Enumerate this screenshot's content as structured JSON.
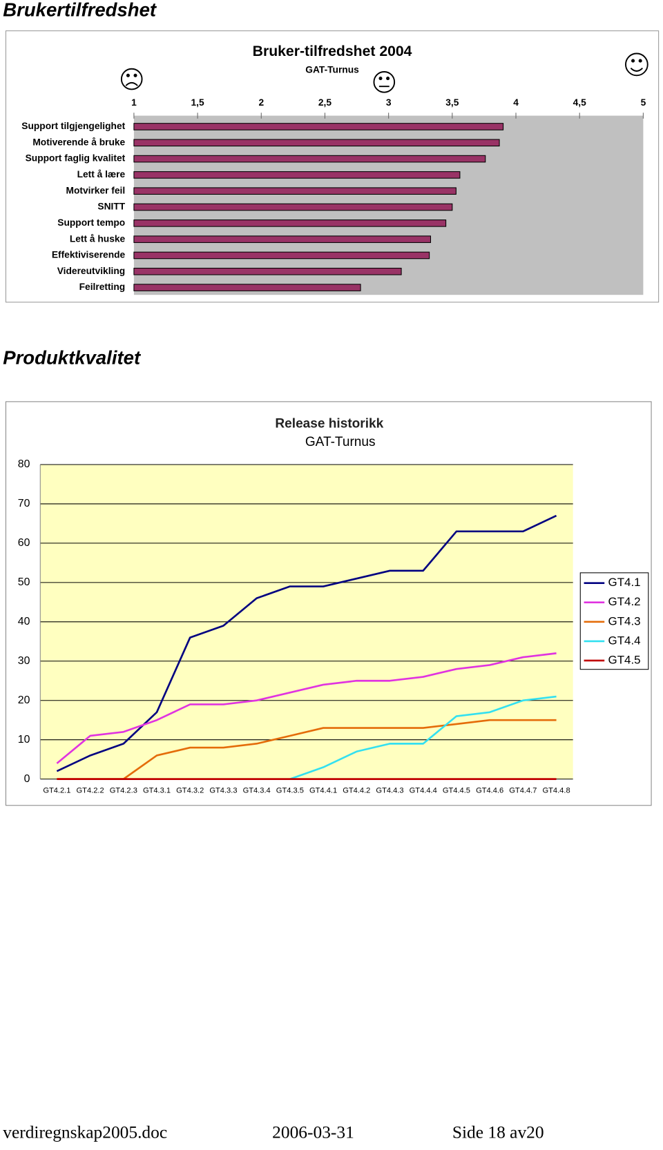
{
  "headings": [
    "Brukertilfredshet",
    "Produktkvalitet"
  ],
  "chart_data": [
    {
      "type": "hbar",
      "title": "Bruker-tilfredshet 2004",
      "subtitle": "GAT-Turnus",
      "categories": [
        "Support tilgjengelighet",
        "Motiverende å bruke",
        "Support faglig kvalitet",
        "Lett å lære",
        "Motvirker feil",
        "SNITT",
        "Support tempo",
        "Lett å huske",
        "Effektiviserende",
        "Videreutvikling",
        "Feilretting"
      ],
      "values": [
        3.9,
        3.87,
        3.76,
        3.56,
        3.53,
        3.5,
        3.45,
        3.33,
        3.32,
        3.1,
        2.78
      ],
      "color": "#993366",
      "xlim": [
        1,
        5
      ],
      "xticks": [
        1,
        {
          "value": 1.5,
          "label": "1,5"
        },
        2,
        {
          "value": 2.5,
          "label": "2,5"
        },
        3,
        {
          "value": 3.5,
          "label": "3,5"
        },
        4,
        {
          "value": 4.5,
          "label": "4,5"
        },
        5
      ]
    },
    {
      "type": "line",
      "title": "Release historikk",
      "subtitle": "GAT-Turnus",
      "categories": [
        "GT4.2.1",
        "GT4.2.2",
        "GT4.2.3",
        "GT4.3.1",
        "GT4.3.2",
        "GT4.3.3",
        "GT4.3.4",
        "GT4.3.5",
        "GT4.4.1",
        "GT4.4.2",
        "GT4.4.3",
        "GT4.4.4",
        "GT4.4.5",
        "GT4.4.6",
        "GT4.4.7",
        "GT4.4.8"
      ],
      "series": [
        {
          "name": "GT4.1",
          "color": "#000080",
          "values": [
            2,
            6,
            9,
            17,
            36,
            39,
            46,
            49,
            49,
            51,
            53,
            53,
            63,
            63,
            63,
            67
          ]
        },
        {
          "name": "GT4.2",
          "color": "#e033e0",
          "values": [
            4,
            11,
            12,
            15,
            19,
            19,
            20,
            22,
            24,
            25,
            25,
            26,
            28,
            29,
            31,
            32
          ]
        },
        {
          "name": "GT4.3",
          "color": "#e46c0a",
          "values": [
            0,
            0,
            0,
            6,
            8,
            8,
            9,
            11,
            13,
            13,
            13,
            13,
            14,
            15,
            15,
            15
          ]
        },
        {
          "name": "GT4.4",
          "color": "#33e0f0",
          "values": [
            null,
            null,
            null,
            null,
            null,
            null,
            null,
            0,
            3,
            7,
            9,
            9,
            16,
            17,
            20,
            21
          ]
        },
        {
          "name": "GT4.5",
          "color": "#c00000",
          "values": [
            0,
            0,
            0,
            0,
            0,
            0,
            0,
            0,
            0,
            0,
            0,
            0,
            0,
            0,
            0,
            0
          ]
        }
      ],
      "ylim": [
        0,
        80
      ],
      "yticks": [
        0,
        10,
        20,
        30,
        40,
        50,
        60,
        70,
        80
      ],
      "grid": true,
      "legend": "right"
    }
  ],
  "footer": {
    "file": "verdiregnskap2005.doc",
    "date": "2006-03-31",
    "page": "Side 18 av20"
  }
}
